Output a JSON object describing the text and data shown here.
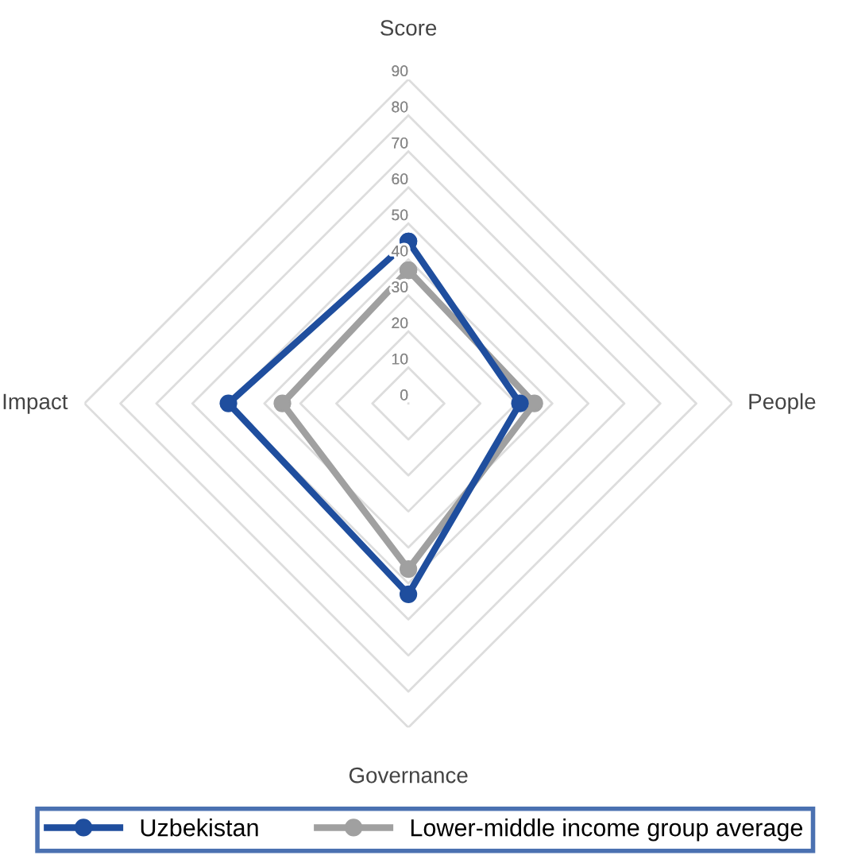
{
  "chart_data": {
    "type": "radar",
    "categories": [
      "Score",
      "People",
      "Governance",
      "Impact"
    ],
    "series": [
      {
        "name": "Uzbekistan",
        "color": "#1f4e9e",
        "values": [
          45,
          31,
          53,
          50
        ]
      },
      {
        "name": "Lower-middle income group average",
        "color": "#a0a0a0",
        "values": [
          37,
          35,
          46,
          35
        ]
      }
    ],
    "ylim": [
      0,
      90
    ],
    "yticks": [
      0,
      10,
      20,
      30,
      40,
      50,
      60,
      70,
      80,
      90
    ],
    "grid": true,
    "legend": "bottom",
    "marker": "circle",
    "line_style": "solid"
  }
}
